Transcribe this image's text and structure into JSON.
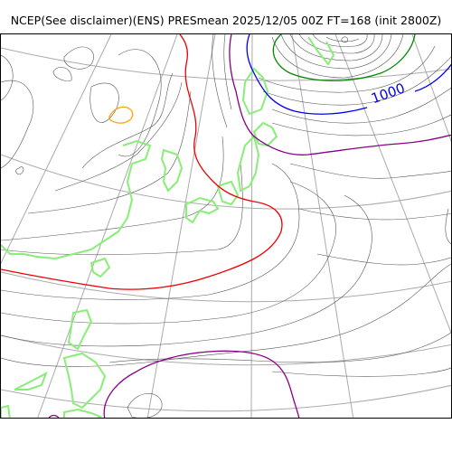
{
  "title": "NCEP(See disclaimer)(ENS) PRESmean 2025/12/05 00Z FT=168 (init 2800Z)",
  "map": {
    "isobar_label": "1000",
    "colors": {
      "coastline": "#88ee77",
      "isobar_thin": "#555555",
      "graticule": "#aaaaaa",
      "contour_blue": "#0000ee",
      "contour_red": "#ee0000",
      "contour_green": "#008800",
      "contour_purple": "#880088",
      "contour_orange": "#ffa500"
    }
  }
}
